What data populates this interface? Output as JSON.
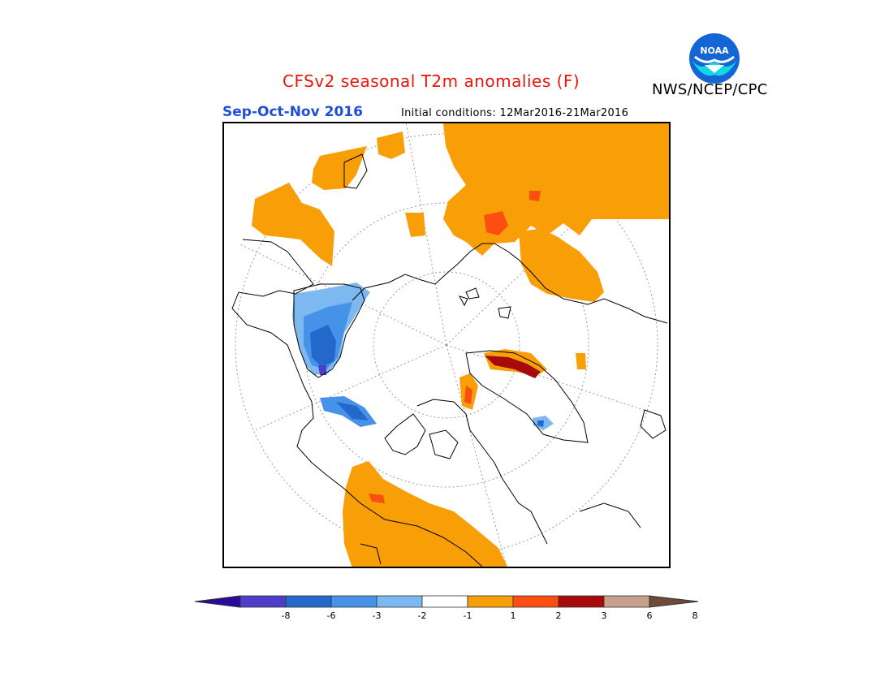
{
  "header": {
    "title": "CFSv2 seasonal T2m anomalies (F)",
    "title_color": "#e8150a",
    "agency": "NWS/NCEP/CPC",
    "logo_text": "NOAA"
  },
  "subheader": {
    "season": "Sep-Oct-Nov 2016",
    "season_color": "#1f4fd6",
    "initial_conditions": "Initial conditions: 12Mar2016-21Mar2016"
  },
  "map": {
    "projection": "north-polar-stereographic",
    "region": "Northern Hemisphere polar cap"
  },
  "colorbar": {
    "bins": [
      {
        "color": "#2a0a9a"
      },
      {
        "color": "#4e3ec9"
      },
      {
        "color": "#2468cc"
      },
      {
        "color": "#4592e8"
      },
      {
        "color": "#7cb9f0"
      },
      {
        "color": "#ffffff"
      },
      {
        "color": "#f89e06"
      },
      {
        "color": "#fc4e10"
      },
      {
        "color": "#a60a0a"
      },
      {
        "color": "#c9a08e"
      },
      {
        "color": "#6e4a3a"
      }
    ],
    "ticks": [
      "-8",
      "-6",
      "-3",
      "-2",
      "-1",
      "1",
      "2",
      "3",
      "6",
      "8"
    ]
  }
}
